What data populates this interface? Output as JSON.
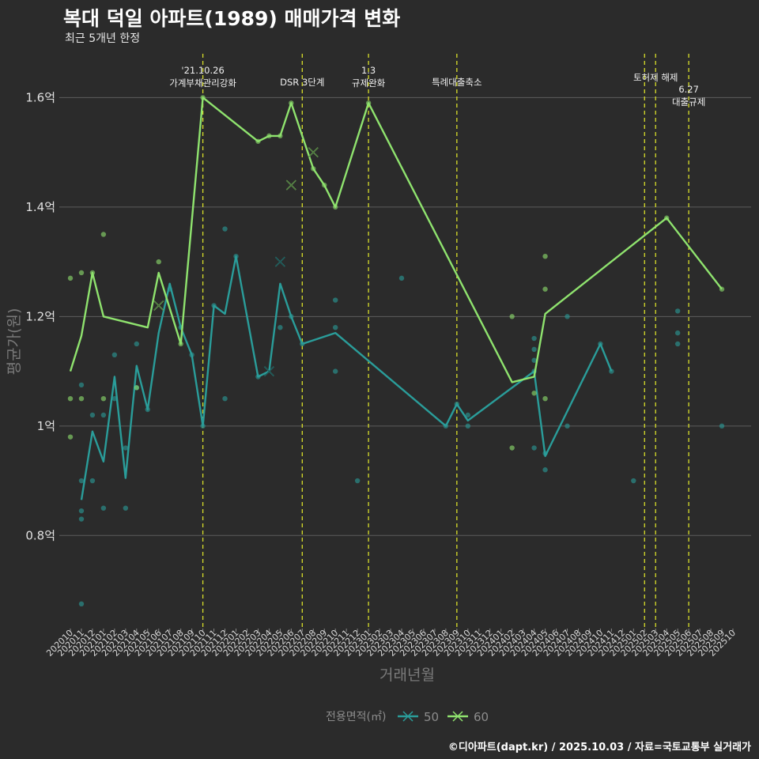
{
  "title": "복대 덕일 아파트(1989) 매매가격 변화",
  "subtitle": "최근 5개년 한정",
  "caption": "©디아파트(dapt.kr) / 2025.10.03 / 자료=국토교통부 실거래가",
  "colors": {
    "background": "#2b2b2b",
    "grid": "#5c5c5c",
    "series50": "#2a9d9a",
    "series60": "#8fe36e",
    "vline": "#d9df2a"
  },
  "chart_data": {
    "type": "line",
    "xlabel": "거래년월",
    "ylabel": "평균가(원)",
    "ylim": [
      0.63,
      1.68
    ],
    "yticks": [
      {
        "value": 0.8,
        "label": "0.8억"
      },
      {
        "value": 1.0,
        "label": "1억"
      },
      {
        "value": 1.2,
        "label": "1.2억"
      },
      {
        "value": 1.4,
        "label": "1.4억"
      },
      {
        "value": 1.6,
        "label": "1.6억"
      }
    ],
    "x_months": [
      "202010",
      "202011",
      "202012",
      "202101",
      "202102",
      "202103",
      "202104",
      "202105",
      "202106",
      "202107",
      "202108",
      "202109",
      "202110",
      "202111",
      "202112",
      "202201",
      "202202",
      "202203",
      "202204",
      "202205",
      "202206",
      "202207",
      "202208",
      "202209",
      "202210",
      "202211",
      "202212",
      "202301",
      "202302",
      "202303",
      "202304",
      "202305",
      "202306",
      "202307",
      "202308",
      "202309",
      "202310",
      "202311",
      "202312",
      "202401",
      "202402",
      "202403",
      "202404",
      "202405",
      "202406",
      "202407",
      "202408",
      "202409",
      "202410",
      "202411",
      "202412",
      "202501",
      "202502",
      "202503",
      "202504",
      "202505",
      "202506",
      "202507",
      "202508",
      "202509",
      "202510"
    ],
    "legend_title": "전용면적(㎡)",
    "series": [
      {
        "name": "50",
        "line": [
          [
            "202011",
            0.865
          ],
          [
            "202012",
            0.99
          ],
          [
            "202101",
            0.935
          ],
          [
            "202102",
            1.09
          ],
          [
            "202103",
            0.905
          ],
          [
            "202104",
            1.11
          ],
          [
            "202105",
            1.03
          ],
          [
            "202106",
            1.17
          ],
          [
            "202107",
            1.26
          ],
          [
            "202108",
            1.18
          ],
          [
            "202109",
            1.13
          ],
          [
            "202110",
            1.0
          ],
          [
            "202111",
            1.22
          ],
          [
            "202112",
            1.205
          ],
          [
            "202201",
            1.31
          ],
          [
            "202203",
            1.09
          ],
          [
            "202204",
            1.1
          ],
          [
            "202205",
            1.26
          ],
          [
            "202206",
            1.2
          ],
          [
            "202207",
            1.15
          ],
          [
            "202210",
            1.17
          ],
          [
            "202308",
            1.0
          ],
          [
            "202309",
            1.04
          ],
          [
            "202310",
            1.01
          ],
          [
            "202404",
            1.1
          ],
          [
            "202405",
            0.945
          ],
          [
            "202410",
            1.15
          ],
          [
            "202411",
            1.1
          ]
        ],
        "points": [
          [
            "202011",
            0.675
          ],
          [
            "202011",
            0.83
          ],
          [
            "202011",
            0.845
          ],
          [
            "202011",
            0.9
          ],
          [
            "202011",
            1.075
          ],
          [
            "202012",
            0.9
          ],
          [
            "202012",
            1.02
          ],
          [
            "202101",
            0.85
          ],
          [
            "202101",
            1.02
          ],
          [
            "202102",
            1.13
          ],
          [
            "202102",
            1.05
          ],
          [
            "202103",
            0.85
          ],
          [
            "202103",
            0.96
          ],
          [
            "202104",
            1.15
          ],
          [
            "202104",
            1.07
          ],
          [
            "202105",
            1.03
          ],
          [
            "202107",
            1.25
          ],
          [
            "202108",
            1.18
          ],
          [
            "202109",
            1.13
          ],
          [
            "202110",
            1.0
          ],
          [
            "202111",
            1.22
          ],
          [
            "202112",
            1.36
          ],
          [
            "202112",
            1.05
          ],
          [
            "202201",
            1.31
          ],
          [
            "202203",
            1.09
          ],
          [
            "202205",
            1.18
          ],
          [
            "202206",
            1.2
          ],
          [
            "202207",
            1.15
          ],
          [
            "202210",
            1.23
          ],
          [
            "202210",
            1.18
          ],
          [
            "202210",
            1.1
          ],
          [
            "202212",
            0.9
          ],
          [
            "202304",
            1.27
          ],
          [
            "202308",
            1.0
          ],
          [
            "202309",
            1.04
          ],
          [
            "202310",
            1.02
          ],
          [
            "202310",
            1.0
          ],
          [
            "202404",
            1.16
          ],
          [
            "202404",
            1.14
          ],
          [
            "202404",
            1.12
          ],
          [
            "202404",
            1.1
          ],
          [
            "202404",
            0.96
          ],
          [
            "202405",
            0.95
          ],
          [
            "202405",
            0.92
          ],
          [
            "202407",
            1.2
          ],
          [
            "202407",
            1.0
          ],
          [
            "202410",
            1.15
          ],
          [
            "202411",
            1.1
          ],
          [
            "202501",
            0.9
          ],
          [
            "202505",
            1.21
          ],
          [
            "202505",
            1.17
          ],
          [
            "202505",
            1.15
          ],
          [
            "202509",
            1.0
          ]
        ],
        "crosses": [
          [
            "202204",
            1.1
          ],
          [
            "202205",
            1.3
          ]
        ]
      },
      {
        "name": "60",
        "line": [
          [
            "202010",
            1.1
          ],
          [
            "202011",
            1.165
          ],
          [
            "202012",
            1.28
          ],
          [
            "202101",
            1.2
          ],
          [
            "202105",
            1.18
          ],
          [
            "202106",
            1.28
          ],
          [
            "202108",
            1.15
          ],
          [
            "202110",
            1.6
          ],
          [
            "202203",
            1.52
          ],
          [
            "202204",
            1.53
          ],
          [
            "202205",
            1.53
          ],
          [
            "202206",
            1.59
          ],
          [
            "202208",
            1.47
          ],
          [
            "202209",
            1.44
          ],
          [
            "202210",
            1.4
          ],
          [
            "202301",
            1.59
          ],
          [
            "202402",
            1.08
          ],
          [
            "202404",
            1.09
          ],
          [
            "202405",
            1.205
          ],
          [
            "202504",
            1.38
          ],
          [
            "202509",
            1.25
          ]
        ],
        "points": [
          [
            "202010",
            1.27
          ],
          [
            "202010",
            1.05
          ],
          [
            "202010",
            0.98
          ],
          [
            "202011",
            1.28
          ],
          [
            "202011",
            1.05
          ],
          [
            "202012",
            1.28
          ],
          [
            "202101",
            1.35
          ],
          [
            "202101",
            1.05
          ],
          [
            "202104",
            1.07
          ],
          [
            "202106",
            1.3
          ],
          [
            "202108",
            1.15
          ],
          [
            "202110",
            1.6
          ],
          [
            "202203",
            1.52
          ],
          [
            "202204",
            1.53
          ],
          [
            "202205",
            1.53
          ],
          [
            "202206",
            1.59
          ],
          [
            "202208",
            1.47
          ],
          [
            "202209",
            1.44
          ],
          [
            "202210",
            1.4
          ],
          [
            "202301",
            1.59
          ],
          [
            "202402",
            1.2
          ],
          [
            "202402",
            0.96
          ],
          [
            "202404",
            1.06
          ],
          [
            "202405",
            1.31
          ],
          [
            "202405",
            1.25
          ],
          [
            "202405",
            1.05
          ],
          [
            "202504",
            1.38
          ],
          [
            "202509",
            1.25
          ]
        ],
        "crosses": [
          [
            "202106",
            1.22
          ],
          [
            "202206",
            1.44
          ],
          [
            "202208",
            1.5
          ]
        ]
      }
    ],
    "annotations": [
      {
        "month": "202110",
        "lines": [
          "'21.10.26",
          "가계부채관리강화"
        ],
        "level": 0
      },
      {
        "month": "202207",
        "lines": [
          "DSR 3단계"
        ],
        "level": 1
      },
      {
        "month": "202301",
        "lines": [
          "1.3",
          "규제완화"
        ],
        "level": 0
      },
      {
        "month": "202309",
        "lines": [
          "특례대출축소"
        ],
        "level": 1
      },
      {
        "month": "202502",
        "lines": [],
        "level": 0
      },
      {
        "month": "202503",
        "lines": [
          "토허제 해제"
        ],
        "level": 0.6
      },
      {
        "month": "202506",
        "lines": [
          "6.27",
          "대출규제"
        ],
        "level": 1.6
      }
    ]
  }
}
